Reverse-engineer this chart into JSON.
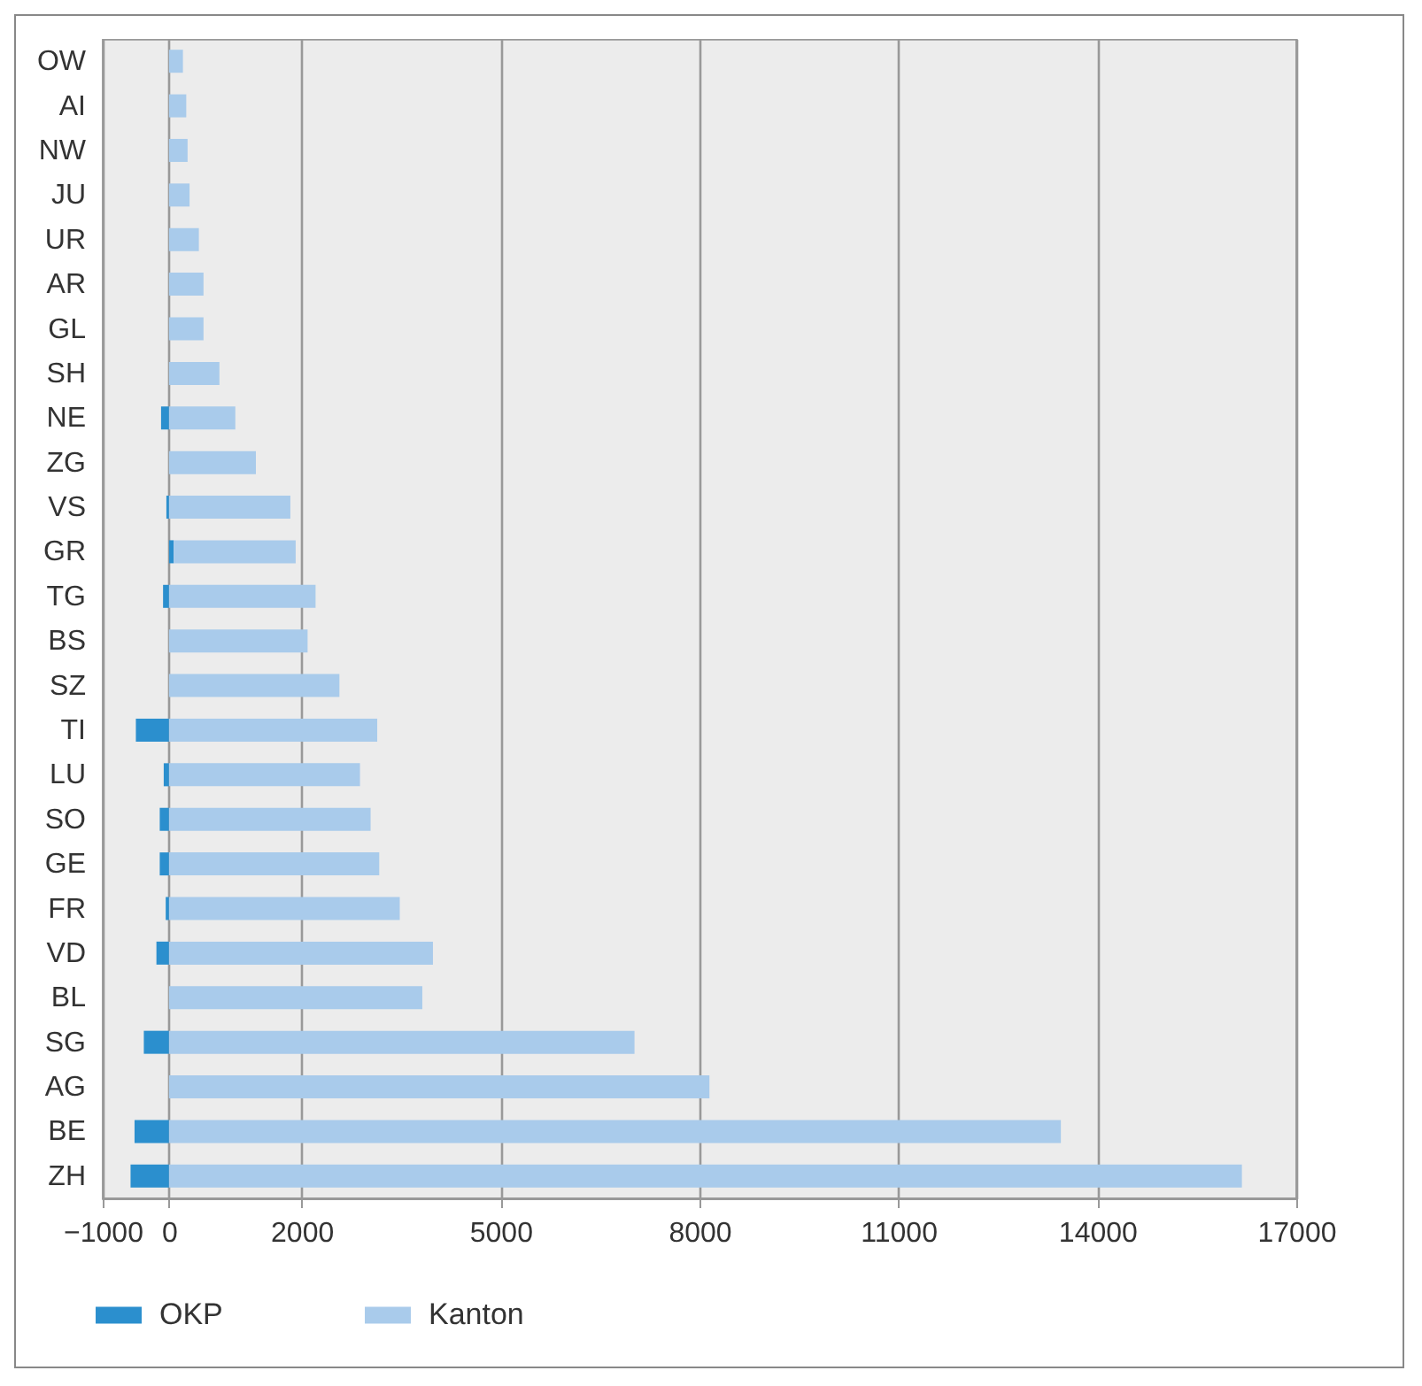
{
  "chart_data": {
    "type": "bar",
    "orientation": "horizontal",
    "stacked": true,
    "categories": [
      "OW",
      "AI",
      "NW",
      "JU",
      "UR",
      "AR",
      "GL",
      "SH",
      "NE",
      "ZG",
      "VS",
      "GR",
      "TG",
      "BS",
      "SZ",
      "TI",
      "LU",
      "SO",
      "GE",
      "FR",
      "VD",
      "BL",
      "SG",
      "AG",
      "BE",
      "ZH"
    ],
    "series": [
      {
        "name": "OKP",
        "color": "#2b8fce",
        "values": [
          0,
          0,
          0,
          0,
          0,
          0,
          0,
          0,
          -120,
          0,
          -40,
          70,
          -90,
          0,
          0,
          -500,
          -80,
          -140,
          -140,
          -50,
          -190,
          0,
          -380,
          0,
          -520,
          -580
        ]
      },
      {
        "name": "Kanton",
        "color": "#a9cbeb",
        "values": [
          210,
          260,
          280,
          310,
          450,
          520,
          520,
          760,
          1000,
          1310,
          1830,
          1840,
          2210,
          2090,
          2570,
          3140,
          2880,
          3040,
          3170,
          3480,
          3980,
          3820,
          7020,
          8150,
          13450,
          16180
        ]
      }
    ],
    "xlim": [
      -1000,
      17000
    ],
    "xticks": [
      -1000,
      0,
      2000,
      5000,
      8000,
      11000,
      14000,
      17000
    ],
    "grid": "x",
    "legend": "bottom left"
  }
}
